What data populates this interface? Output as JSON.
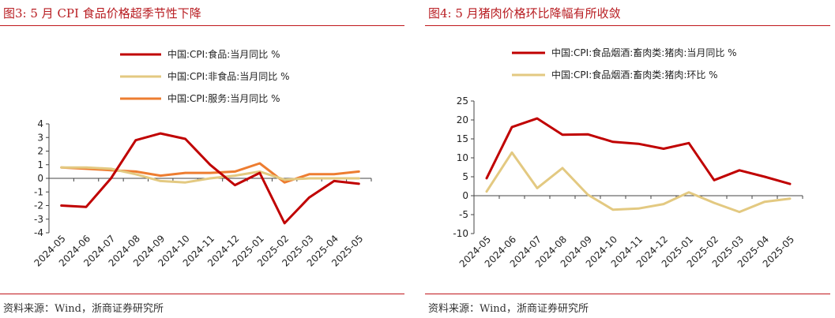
{
  "source_label": "资料来源：Wind，浙商证券研究所",
  "chart_data": [
    {
      "type": "line",
      "title": "图3:   5 月 CPI 食品价格超季节性下降",
      "categories": [
        "2024-05",
        "2024-06",
        "2024-07",
        "2024-08",
        "2024-09",
        "2024-10",
        "2024-11",
        "2024-12",
        "2025-01",
        "2025-02",
        "2025-03",
        "2025-04",
        "2025-05"
      ],
      "ylim": [
        -4,
        4
      ],
      "yticks": [
        -4,
        -3,
        -2,
        -1,
        0,
        1,
        2,
        3,
        4
      ],
      "grid": false,
      "legend_position": "top",
      "series": [
        {
          "name": "中国:CPI:食品:当月同比 %",
          "color": "#c00000",
          "values": [
            -2.0,
            -2.1,
            0.0,
            2.8,
            3.3,
            2.9,
            1.0,
            -0.5,
            0.4,
            -3.3,
            -1.4,
            -0.2,
            -0.4
          ]
        },
        {
          "name": "中国:CPI:非食品:当月同比 %",
          "color": "#e3c981",
          "values": [
            0.8,
            0.8,
            0.7,
            0.3,
            -0.2,
            -0.3,
            0.0,
            0.2,
            0.5,
            -0.1,
            0.0,
            0.0,
            0.0
          ]
        },
        {
          "name": "中国:CPI:服务:当月同比 %",
          "color": "#ed7d31",
          "values": [
            0.8,
            0.7,
            0.6,
            0.5,
            0.2,
            0.4,
            0.4,
            0.5,
            1.1,
            -0.3,
            0.3,
            0.3,
            0.5
          ]
        }
      ]
    },
    {
      "type": "line",
      "title": "图4:   5 月猪肉价格环比降幅有所收敛",
      "categories": [
        "2024-05",
        "2024-06",
        "2024-07",
        "2024-08",
        "2024-09",
        "2024-10",
        "2024-11",
        "2024-12",
        "2025-01",
        "2025-02",
        "2025-03",
        "2025-04",
        "2025-05"
      ],
      "ylim": [
        -10,
        25
      ],
      "yticks": [
        -10,
        -5,
        0,
        5,
        10,
        15,
        20,
        25
      ],
      "grid": false,
      "legend_position": "top",
      "series": [
        {
          "name": "中国:CPI:食品烟酒:畜肉类:猪肉:当月同比 %",
          "color": "#c00000",
          "values": [
            4.6,
            18.1,
            20.4,
            16.1,
            16.2,
            14.2,
            13.7,
            12.4,
            13.9,
            4.1,
            6.7,
            5.0,
            3.1
          ]
        },
        {
          "name": "中国:CPI:食品烟酒:畜肉类:猪肉:环比 %",
          "color": "#e3c981",
          "values": [
            1.1,
            11.4,
            2.0,
            7.3,
            0.3,
            -3.7,
            -3.4,
            -2.2,
            0.9,
            -1.9,
            -4.3,
            -1.6,
            -0.8
          ]
        }
      ]
    }
  ]
}
